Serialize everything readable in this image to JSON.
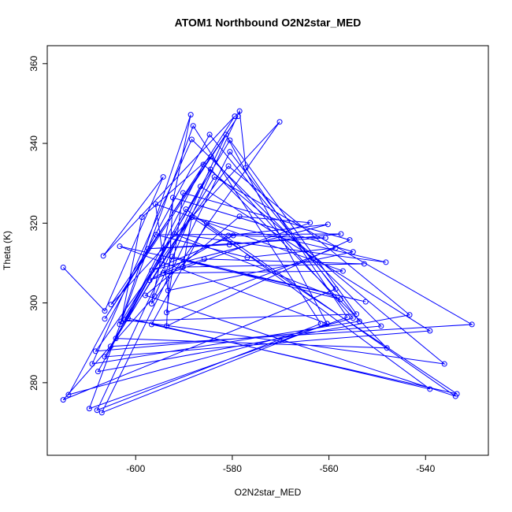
{
  "chart_data": {
    "type": "line",
    "title": "ATOM1 Northbound O2N2star_MED",
    "xlabel": "O2N2star_MED",
    "ylabel": "Theta (K)",
    "color": "#0000ff",
    "xlim": [
      -618.3,
      -527.0
    ],
    "ylim": [
      261.8,
      364.5
    ],
    "xticks": [
      -600,
      -580,
      -560,
      -540
    ],
    "yticks": [
      280,
      300,
      320,
      340,
      360
    ],
    "x": [
      -615.0,
      -606.4,
      -594.3,
      -606.7,
      -579.5,
      -606.4,
      -578.8,
      -605.1,
      -570.2,
      -596.7,
      -588.6,
      -603.3,
      -580.5,
      -554.3,
      -603.0,
      -598.7,
      -584.4,
      -555.0,
      -613.9,
      -584.7,
      -558.6,
      -615.0,
      -596.1,
      -578.5,
      -577.2,
      -556.2,
      -609.6,
      -588.1,
      -561.7,
      -608.0,
      -581.3,
      -560.4,
      -607.0,
      -580.5,
      -553.7,
      -609.0,
      -588.4,
      -549.2,
      -608.3,
      -580.8,
      -543.3,
      -607.8,
      -586.6,
      -539.1,
      -606.4,
      -583.7,
      -530.4,
      -605.2,
      -584.5,
      -548.0,
      -604.1,
      -586.0,
      -536.1,
      -602.3,
      -589.6,
      -539.1,
      -601.6,
      -588.4,
      -533.5,
      -596.7,
      -585.3,
      -533.8,
      -598.0,
      -578.5,
      -563.9,
      -597.1,
      -580.8,
      -560.2,
      -596.6,
      -579.8,
      -560.7,
      -597.4,
      -580.6,
      -557.5,
      -595.8,
      -576.9,
      -558.6,
      -593.6,
      -590.2,
      -555.7,
      -593.6,
      -592.3,
      -555.0,
      -593.3,
      -595.9,
      -557.1,
      -594.3,
      -585.8,
      -552.7,
      -590.2,
      -588.4,
      -548.2,
      -592.0,
      -557.6,
      -592.5,
      -552.4,
      -603.3,
      -560.4
    ],
    "values": [
      308.9,
      298.0,
      331.6,
      311.8,
      346.8,
      296.0,
      346.8,
      299.6,
      345.4,
      299.8,
      347.2,
      294.6,
      340.8,
      297.2,
      295.4,
      321.5,
      336.7,
      296.2,
      277.0,
      342.2,
      303.5,
      275.7,
      301.7,
      348.1,
      333.9,
      296.4,
      273.5,
      344.4,
      294.8,
      273.1,
      342.2,
      294.8,
      272.5,
      337.9,
      295.4,
      284.7,
      341.0,
      294.2,
      287.9,
      334.3,
      297.0,
      282.8,
      329.2,
      293.0,
      286.5,
      331.6,
      294.6,
      289.1,
      333.5,
      288.7,
      291.1,
      334.7,
      284.7,
      295.8,
      323.5,
      278.4,
      296.2,
      321.5,
      277.2,
      294.6,
      320.0,
      276.6,
      301.9,
      321.7,
      320.1,
      305.7,
      316.9,
      319.7,
      308.2,
      316.9,
      316.3,
      313.6,
      314.6,
      317.3,
      317.1,
      311.4,
      313.8,
      297.6,
      327.6,
      315.8,
      294.2,
      326.4,
      312.8,
      303.1,
      324.8,
      308.0,
      307.5,
      311.0,
      309.8,
      309.0,
      321.5,
      310.2,
      317.3,
      300.9,
      311.6,
      300.3,
      314.2,
      294.8
    ]
  }
}
